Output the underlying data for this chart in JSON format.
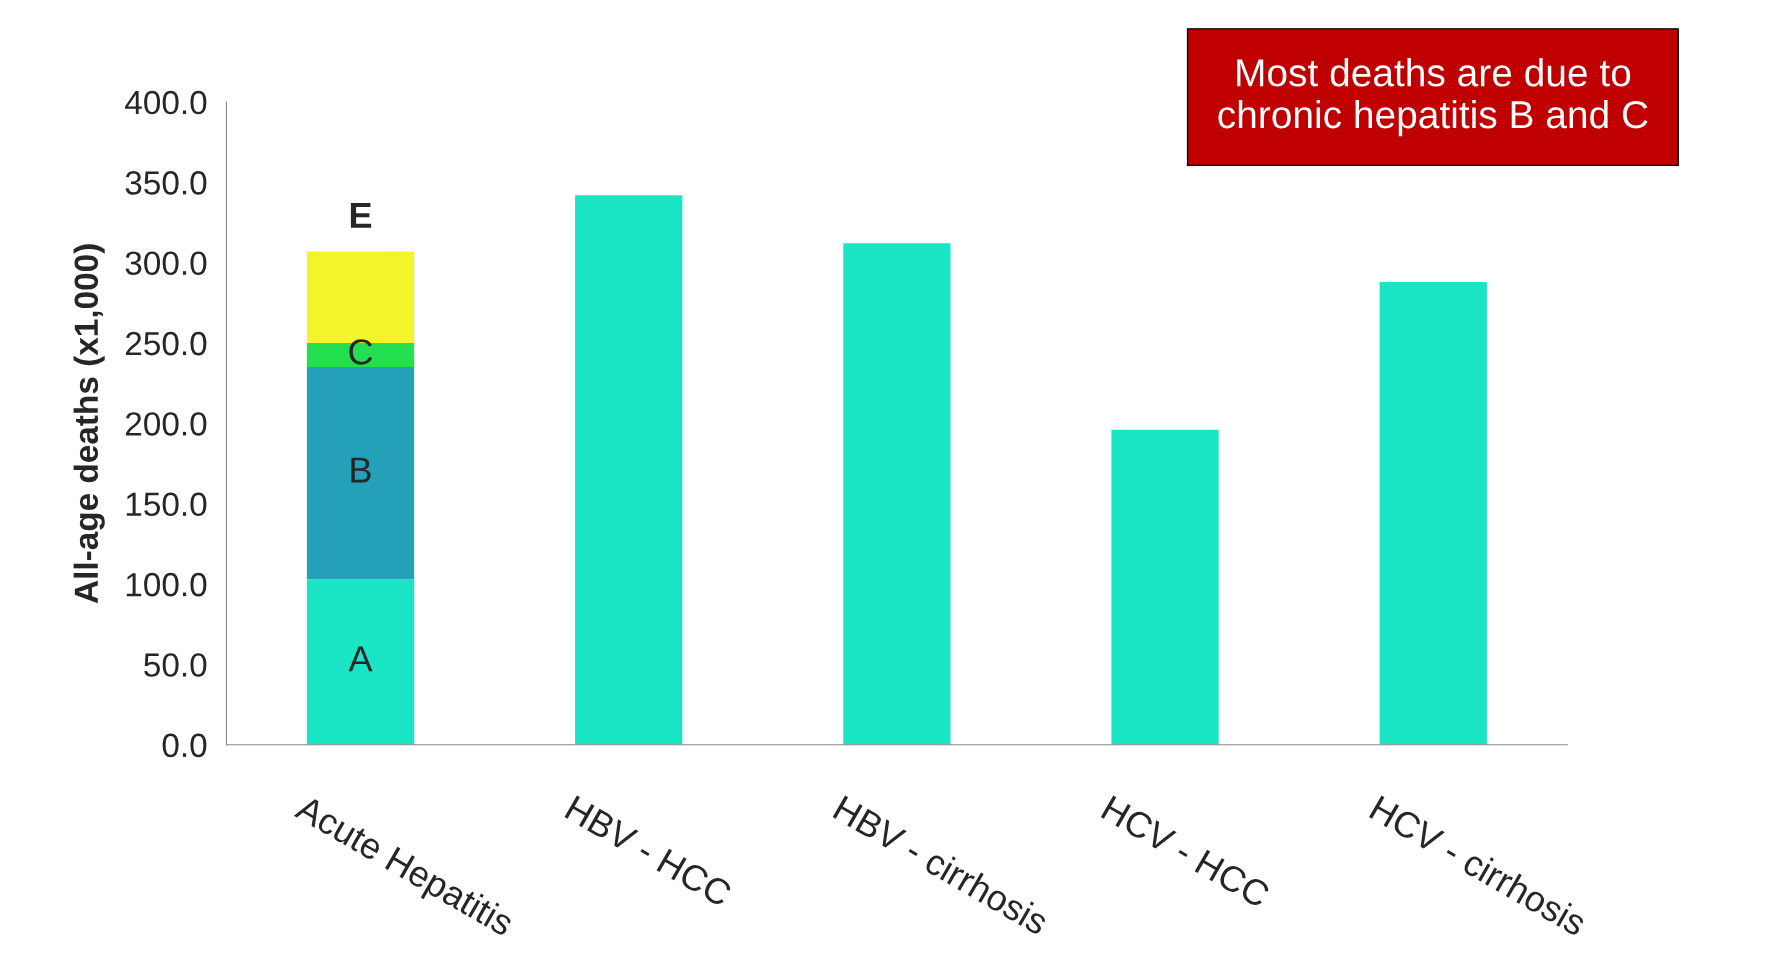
{
  "chart_data": {
    "type": "bar",
    "stacked": true,
    "grid": false,
    "ylabel": "All-age deaths (x1,000)",
    "categories": [
      "Acute Hepatitis",
      "HBV - HCC",
      "HBV - cirrhosis",
      "HCV - HCC",
      "HCV - cirrhosis"
    ],
    "series": [
      {
        "name": "A",
        "color": "#1ae6c6",
        "values": [
          103,
          342,
          312,
          196,
          288
        ]
      },
      {
        "name": "B",
        "color": "#24a0b8",
        "values": [
          132,
          null,
          null,
          null,
          null
        ]
      },
      {
        "name": "C",
        "color": "#22e050",
        "values": [
          15,
          null,
          null,
          null,
          null
        ]
      },
      {
        "name": "E",
        "color": "#f2f52a",
        "values": [
          57,
          null,
          null,
          null,
          null
        ]
      }
    ],
    "ylim": [
      0,
      400
    ],
    "yticks": [
      {
        "value": 0,
        "label": "0.0"
      },
      {
        "value": 50,
        "label": "50.0"
      },
      {
        "value": 100,
        "label": "100.0"
      },
      {
        "value": 150,
        "label": "150.0"
      },
      {
        "value": 200,
        "label": "200.0"
      },
      {
        "value": 250,
        "label": "250.0"
      },
      {
        "value": 300,
        "label": "300.0"
      },
      {
        "value": 350,
        "label": "350.0"
      },
      {
        "value": 400,
        "label": "400.0"
      }
    ],
    "annotations": [
      "Most deaths are due to\nchronic hepatitis B and C"
    ]
  }
}
